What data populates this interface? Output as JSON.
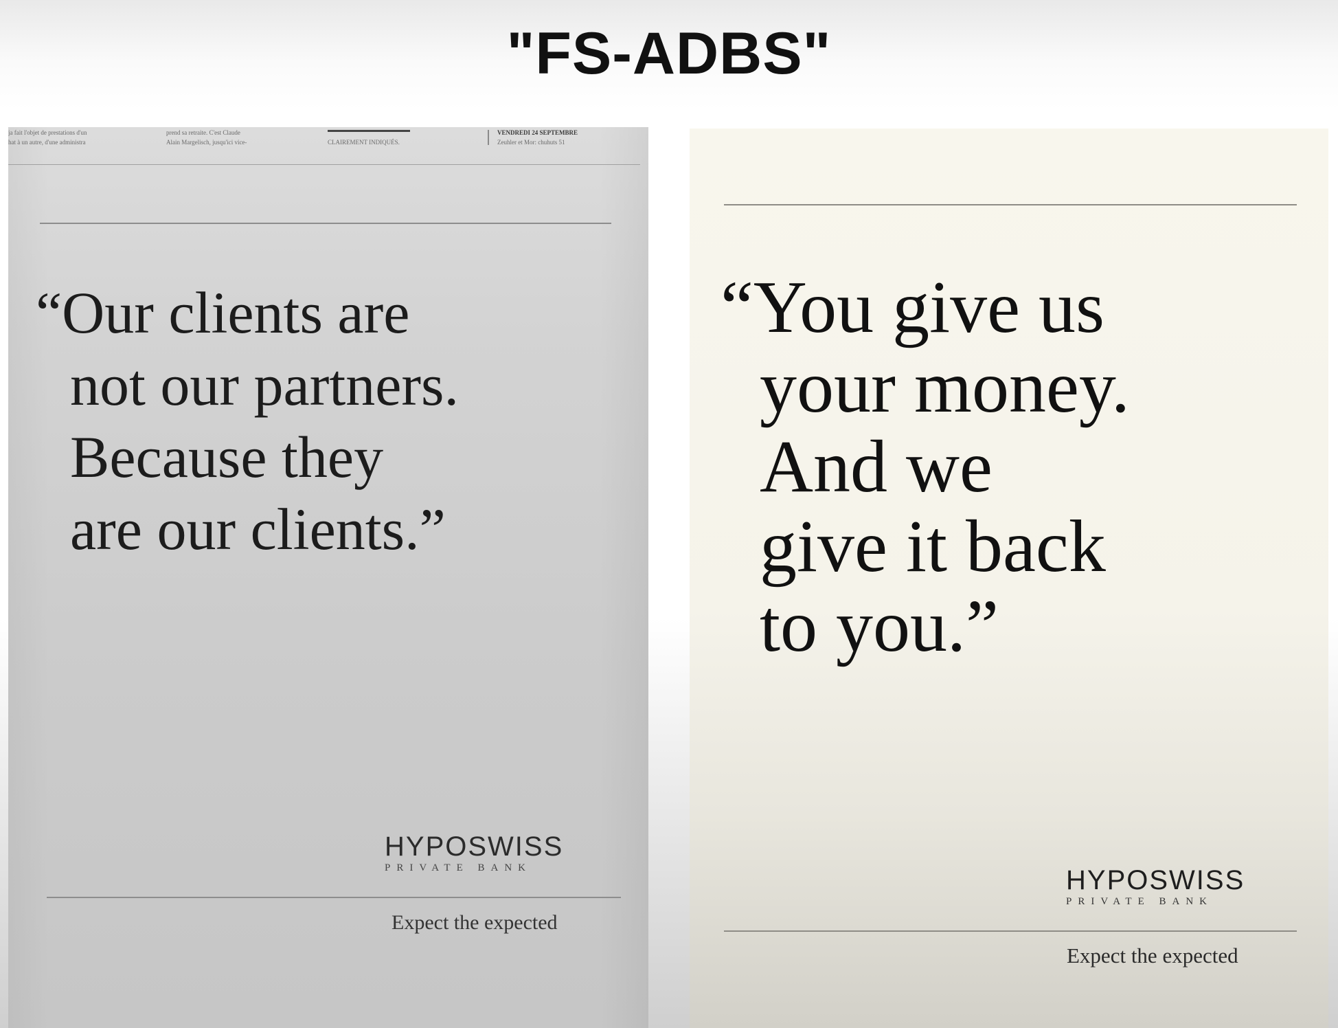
{
  "title": "\"FS-ADBS\"",
  "left_ad": {
    "newspaper_header": {
      "col1_line1": "ja fait l'objet de prestations d'un",
      "col1_line2": "hat à un autre, d'une administra",
      "col2_line1": "prend sa retraite. C'est Claude",
      "col2_line2": "Alain Margelisch, jusqu'ici vice-",
      "col3_line2": "CLAIREMENT INDIQUÉS.",
      "col4_line1": "VENDREDI 24 SEPTEMBRE",
      "col4_line2": "Zeuhler et Mor: chuhuts 51"
    },
    "quote_lines": [
      "“Our clients are",
      "not our partners.",
      "Because they",
      "are our clients.”"
    ],
    "brand_name": "HYPOSWISS",
    "brand_sub": "PRIVATE BANK",
    "tagline": "Expect the expected"
  },
  "right_ad": {
    "quote_lines": [
      "“You give us",
      "your money.",
      "And we",
      "give it back",
      "to you.”"
    ],
    "brand_name": "HYPOSWISS",
    "brand_sub": "PRIVATE BANK",
    "tagline": "Expect the expected"
  }
}
